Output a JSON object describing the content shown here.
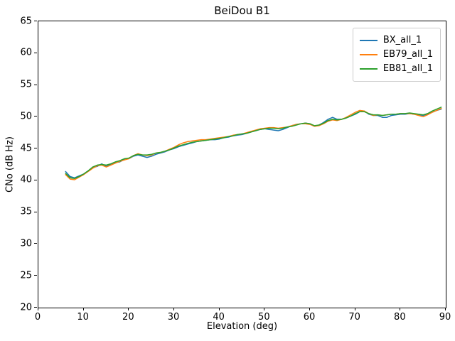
{
  "chart_data": {
    "type": "line",
    "title": "BeiDou B1",
    "xlabel": "Elevation (deg)",
    "ylabel": "CNo (dB Hz)",
    "xlim": [
      0,
      90
    ],
    "ylim": [
      20,
      65
    ],
    "xticks": [
      0,
      10,
      20,
      30,
      40,
      50,
      60,
      70,
      80,
      90
    ],
    "yticks": [
      20,
      25,
      30,
      35,
      40,
      45,
      50,
      55,
      60,
      65
    ],
    "grid": false,
    "legend_position": "upper right",
    "x": [
      6,
      7,
      8,
      9,
      10,
      11,
      12,
      13,
      14,
      15,
      16,
      17,
      18,
      19,
      20,
      21,
      22,
      23,
      24,
      25,
      26,
      27,
      28,
      29,
      30,
      31,
      32,
      33,
      34,
      35,
      36,
      37,
      38,
      39,
      40,
      41,
      42,
      43,
      44,
      45,
      46,
      47,
      48,
      49,
      50,
      51,
      52,
      53,
      54,
      55,
      56,
      57,
      58,
      59,
      60,
      61,
      62,
      63,
      64,
      65,
      66,
      67,
      68,
      69,
      70,
      71,
      72,
      73,
      74,
      75,
      76,
      77,
      78,
      79,
      80,
      81,
      82,
      83,
      84,
      85,
      86,
      87,
      88,
      89
    ],
    "series": [
      {
        "name": "BX_all_1",
        "color": "#1f77b4",
        "values": [
          41.4,
          40.6,
          40.4,
          40.7,
          41.0,
          41.5,
          42.0,
          42.2,
          42.6,
          42.2,
          42.5,
          42.8,
          42.9,
          43.3,
          43.4,
          43.8,
          44.0,
          43.8,
          43.6,
          43.8,
          44.1,
          44.3,
          44.5,
          44.8,
          45.0,
          45.3,
          45.5,
          45.7,
          45.9,
          46.1,
          46.2,
          46.3,
          46.4,
          46.4,
          46.5,
          46.7,
          46.8,
          47.0,
          47.1,
          47.2,
          47.4,
          47.6,
          47.8,
          48.0,
          48.1,
          48.0,
          47.9,
          47.8,
          48.0,
          48.3,
          48.6,
          48.8,
          48.9,
          49.0,
          48.9,
          48.5,
          48.7,
          49.1,
          49.6,
          49.9,
          49.6,
          49.6,
          49.8,
          50.1,
          50.4,
          50.8,
          50.9,
          50.4,
          50.2,
          50.2,
          49.9,
          49.9,
          50.2,
          50.3,
          50.4,
          50.4,
          50.5,
          50.4,
          50.3,
          50.2,
          50.4,
          50.7,
          51.0,
          51.2
        ]
      },
      {
        "name": "EB79_all_1",
        "color": "#ff7f0e",
        "values": [
          40.9,
          40.2,
          40.1,
          40.5,
          40.9,
          41.4,
          41.9,
          42.3,
          42.4,
          42.1,
          42.4,
          42.7,
          43.0,
          43.2,
          43.4,
          43.9,
          44.2,
          44.0,
          43.9,
          44.0,
          44.3,
          44.4,
          44.6,
          44.9,
          45.2,
          45.6,
          45.9,
          46.1,
          46.2,
          46.3,
          46.4,
          46.4,
          46.5,
          46.6,
          46.7,
          46.8,
          46.9,
          47.1,
          47.2,
          47.3,
          47.5,
          47.7,
          47.9,
          48.1,
          48.2,
          48.3,
          48.3,
          48.2,
          48.3,
          48.4,
          48.6,
          48.8,
          48.9,
          48.9,
          48.8,
          48.5,
          48.6,
          48.9,
          49.3,
          49.5,
          49.4,
          49.6,
          49.9,
          50.3,
          50.7,
          51.0,
          50.9,
          50.5,
          50.2,
          50.3,
          50.2,
          50.3,
          50.4,
          50.4,
          50.5,
          50.5,
          50.5,
          50.4,
          50.2,
          50.0,
          50.3,
          50.7,
          51.0,
          51.3
        ]
      },
      {
        "name": "EB81_all_1",
        "color": "#2ca02c",
        "values": [
          41.1,
          40.4,
          40.3,
          40.6,
          41.0,
          41.5,
          42.1,
          42.4,
          42.5,
          42.4,
          42.6,
          42.9,
          43.1,
          43.4,
          43.5,
          43.9,
          44.1,
          44.0,
          44.0,
          44.1,
          44.3,
          44.4,
          44.6,
          44.8,
          45.1,
          45.4,
          45.6,
          45.8,
          46.0,
          46.1,
          46.2,
          46.3,
          46.4,
          46.5,
          46.6,
          46.7,
          46.9,
          47.0,
          47.2,
          47.3,
          47.4,
          47.6,
          47.8,
          48.0,
          48.1,
          48.2,
          48.2,
          48.1,
          48.2,
          48.4,
          48.5,
          48.7,
          48.9,
          49.0,
          48.9,
          48.6,
          48.7,
          49.0,
          49.4,
          49.6,
          49.5,
          49.6,
          49.8,
          50.1,
          50.5,
          50.8,
          50.8,
          50.5,
          50.3,
          50.3,
          50.2,
          50.3,
          50.4,
          50.4,
          50.5,
          50.5,
          50.6,
          50.5,
          50.4,
          50.3,
          50.5,
          50.9,
          51.2,
          51.5
        ]
      }
    ]
  }
}
